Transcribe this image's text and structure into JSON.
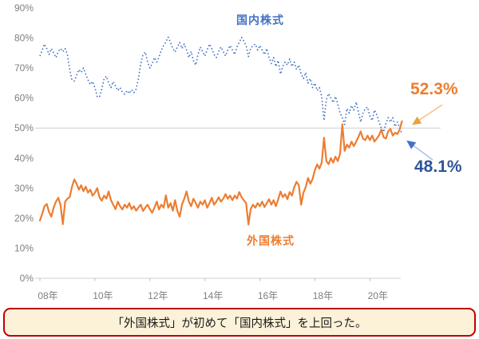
{
  "chart_data": {
    "type": "line",
    "title": "",
    "xlabel": "",
    "ylabel": "",
    "x_axis": {
      "start_year": "2008",
      "frequency": "monthly",
      "tick_labels": [
        "08年",
        "10年",
        "12年",
        "14年",
        "16年",
        "18年",
        "20年"
      ],
      "tick_interval_years": 2
    },
    "y_axis": {
      "tick_labels": [
        "90%",
        "80%",
        "70%",
        "60%",
        "50%",
        "40%",
        "30%",
        "20%",
        "10%",
        "0%"
      ],
      "min": 0,
      "max": 90,
      "unit": "%",
      "gridline_at": 50
    },
    "legend_position": "inline-labels",
    "grid": "single horizontal gridline at 50%",
    "series": [
      {
        "name": "国内株式",
        "color": "#4472C4",
        "style": "dotted",
        "final_value": 48.1,
        "values": [
          74.0,
          76.0,
          78.0,
          76.5,
          74.5,
          76.5,
          75.0,
          73.5,
          75.5,
          76.5,
          75.5,
          76.5,
          74.5,
          69.5,
          66.0,
          65.7,
          67.5,
          69.5,
          68.5,
          70.0,
          68.0,
          66.0,
          64.5,
          65.5,
          63.5,
          60.5,
          60.3,
          63.0,
          66.5,
          67.3,
          65.0,
          63.5,
          65.5,
          64.0,
          62.5,
          63.5,
          62.0,
          61.3,
          62.5,
          61.5,
          62.8,
          61.8,
          63.0,
          66.5,
          71.5,
          74.5,
          75.3,
          72.0,
          70.0,
          71.5,
          73.5,
          72.0,
          73.7,
          76.0,
          77.5,
          78.7,
          80.3,
          78.5,
          76.5,
          75.3,
          77.0,
          78.5,
          76.5,
          78.0,
          76.0,
          73.5,
          75.5,
          72.5,
          71.0,
          74.5,
          77.0,
          75.5,
          74.0,
          76.0,
          78.0,
          76.5,
          74.5,
          73.5,
          75.5,
          77.0,
          75.5,
          74.0,
          76.0,
          77.5,
          76.0,
          74.5,
          77.0,
          78.5,
          80.2,
          79.0,
          77.5,
          73.8,
          76.5,
          77.5,
          78.0,
          76.0,
          77.5,
          76.0,
          74.5,
          76.5,
          73.5,
          71.5,
          73.5,
          70.5,
          72.5,
          68.0,
          70.5,
          72.0,
          71.0,
          73.0,
          70.5,
          72.0,
          69.5,
          71.0,
          68.0,
          66.5,
          68.5,
          65.0,
          66.5,
          63.5,
          65.0,
          62.5,
          63.5,
          60.5,
          52.5,
          59.5,
          61.5,
          60.0,
          58.5,
          60.5,
          58.0,
          55.0,
          53.5,
          51.2,
          56.5,
          55.0,
          57.5,
          56.0,
          58.7,
          55.5,
          52.0,
          55.0,
          56.5,
          57.0,
          54.0,
          52.5,
          56.0,
          54.5,
          52.0,
          50.0,
          48.7,
          51.5,
          53.5,
          52.0,
          53.5,
          50.5,
          52.0,
          50.0,
          48.1
        ]
      },
      {
        "name": "外国株式",
        "color": "#ED7D31",
        "style": "solid",
        "final_value": 52.3,
        "values": [
          19.2,
          21.5,
          24.0,
          24.7,
          22.0,
          20.5,
          23.5,
          25.5,
          26.8,
          24.5,
          18.0,
          25.5,
          26.5,
          27.0,
          30.5,
          32.9,
          31.5,
          29.5,
          31.0,
          29.0,
          30.5,
          28.5,
          29.5,
          27.5,
          28.5,
          30.0,
          27.0,
          25.8,
          27.5,
          26.5,
          28.9,
          26.0,
          24.5,
          23.0,
          25.5,
          24.0,
          22.9,
          24.5,
          23.5,
          25.0,
          23.0,
          24.0,
          22.5,
          23.5,
          24.5,
          22.4,
          23.5,
          24.5,
          23.0,
          21.8,
          23.5,
          25.5,
          22.9,
          24.5,
          23.5,
          27.6,
          23.5,
          25.0,
          22.5,
          26.0,
          22.4,
          20.5,
          24.5,
          26.5,
          28.9,
          25.5,
          24.0,
          26.5,
          25.0,
          23.5,
          25.5,
          24.5,
          26.0,
          23.5,
          25.0,
          26.8,
          24.5,
          25.5,
          27.0,
          25.5,
          26.5,
          28.0,
          26.5,
          27.5,
          26.0,
          27.5,
          26.5,
          28.7,
          27.0,
          26.0,
          25.0,
          17.9,
          23.0,
          24.5,
          23.5,
          25.0,
          24.0,
          25.5,
          23.7,
          25.0,
          26.3,
          24.5,
          26.0,
          24.0,
          26.3,
          28.9,
          27.0,
          28.0,
          26.3,
          28.7,
          27.5,
          30.3,
          32.1,
          31.0,
          24.5,
          28.5,
          30.3,
          33.4,
          31.5,
          33.0,
          36.0,
          37.9,
          36.5,
          38.5,
          46.8,
          39.0,
          38.0,
          40.0,
          38.5,
          40.5,
          39.0,
          41.5,
          51.3,
          42.4,
          44.5,
          43.5,
          45.5,
          44.0,
          45.5,
          47.0,
          48.9,
          46.5,
          46.0,
          47.5,
          46.0,
          47.5,
          45.5,
          46.5,
          47.6,
          49.5,
          47.0,
          46.5,
          48.9,
          49.7,
          47.5,
          48.5,
          48.0,
          49.5,
          52.3
        ]
      }
    ]
  },
  "labels": {
    "domestic": "国内株式",
    "foreign": "外国株式"
  },
  "annotations": {
    "foreign_final": "52.3%",
    "domestic_final": "48.1%"
  },
  "caption": {
    "text": "「外国株式」が初めて「国内株式」を上回った。"
  },
  "colors": {
    "domestic_line": "#4472C4",
    "foreign_line": "#ED7D31",
    "domestic_annotation_text": "#2F5597",
    "foreign_annotation_text": "#ED7D31",
    "arrow_gold_head": "#E8A33D",
    "arrow_blue_head": "#4472C4",
    "gridline": "#D9D9D9",
    "axis_label": "#7F7F7F",
    "caption_border": "#C00000",
    "caption_background": "#FCF2D9"
  }
}
